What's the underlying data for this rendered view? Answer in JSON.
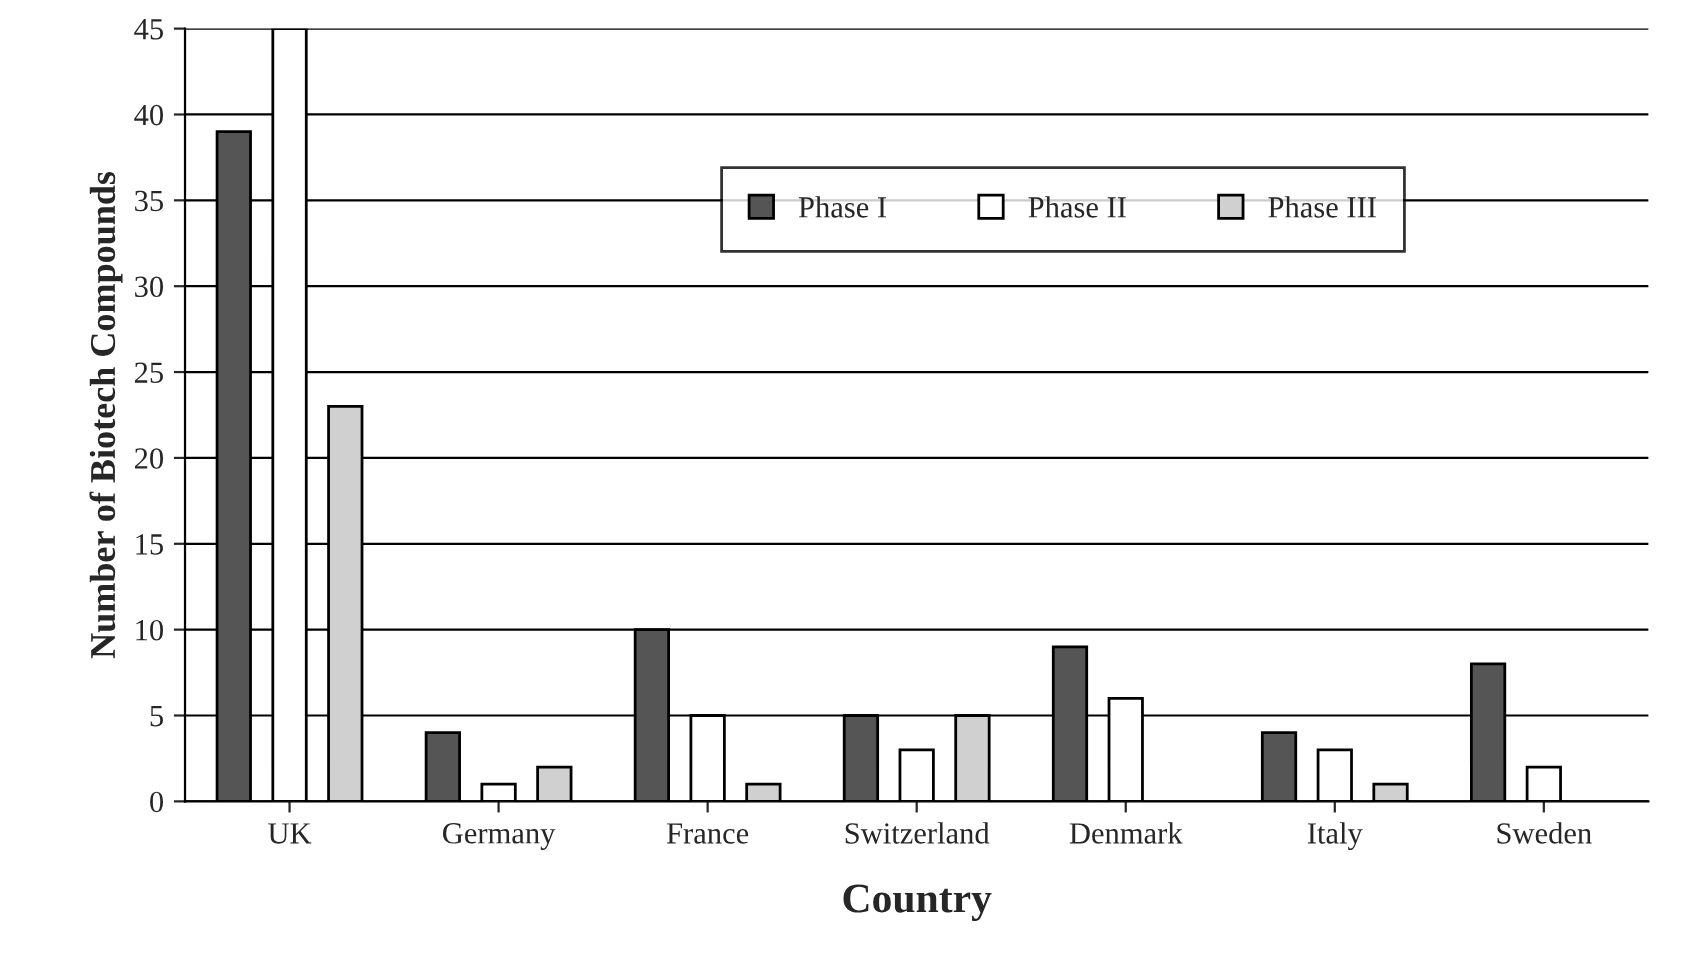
{
  "chart_data": {
    "type": "bar",
    "xlabel": "Country",
    "ylabel": "Number of Biotech Compounds",
    "categories": [
      "UK",
      "Germany",
      "France",
      "Switzerland",
      "Denmark",
      "Italy",
      "Sweden"
    ],
    "series": [
      {
        "name": "Phase I",
        "color": "#555555",
        "values": [
          39,
          4,
          10,
          5,
          9,
          4,
          8
        ]
      },
      {
        "name": "Phase II",
        "color": "#ffffff",
        "values": [
          45,
          1,
          5,
          3,
          6,
          3,
          2
        ]
      },
      {
        "name": "Phase III",
        "color": "#d0d0d0",
        "values": [
          23,
          2,
          1,
          5,
          null,
          1,
          null
        ]
      }
    ],
    "ylim": [
      0,
      45
    ],
    "yticks": [
      0,
      5,
      10,
      15,
      20,
      25,
      30,
      35,
      40,
      45
    ],
    "grid": "y",
    "legend": "top"
  }
}
